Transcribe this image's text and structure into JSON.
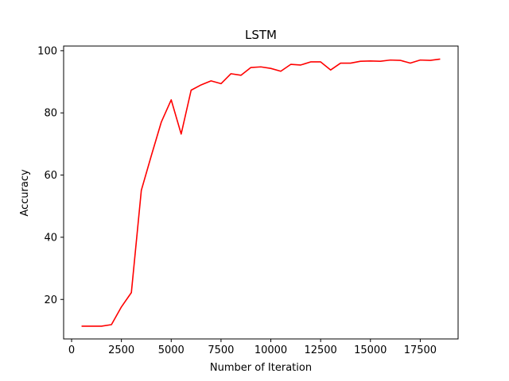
{
  "chart_data": {
    "type": "line",
    "title": "LSTM",
    "xlabel": "Number of Iteration",
    "ylabel": "Accuracy",
    "xlim": [
      -400,
      19400
    ],
    "ylim": [
      7.3,
      101.5
    ],
    "xticks": [
      0,
      2500,
      5000,
      7500,
      10000,
      12500,
      15000,
      17500
    ],
    "yticks": [
      20,
      40,
      60,
      80,
      100
    ],
    "grid": false,
    "series": [
      {
        "color": "#ff0000",
        "x": [
          500,
          1000,
          1500,
          2000,
          2500,
          3000,
          3500,
          4000,
          4500,
          5000,
          5500,
          6000,
          6500,
          7000,
          7500,
          8000,
          8500,
          9000,
          9500,
          10000,
          10500,
          11000,
          11500,
          12000,
          12500,
          13000,
          13500,
          14000,
          14500,
          15000,
          15500,
          16000,
          16500,
          17000,
          17500,
          18000,
          18500
        ],
        "y": [
          11.4,
          11.4,
          11.4,
          11.9,
          17.6,
          22.2,
          55.1,
          66.2,
          77.0,
          84.2,
          73.2,
          87.3,
          89.0,
          90.3,
          89.4,
          92.6,
          92.1,
          94.6,
          94.8,
          94.3,
          93.4,
          95.6,
          95.4,
          96.4,
          96.4,
          93.8,
          96.0,
          96.0,
          96.6,
          96.7,
          96.6,
          97.0,
          96.9,
          96.0,
          97.0,
          96.9,
          97.3
        ]
      }
    ]
  }
}
